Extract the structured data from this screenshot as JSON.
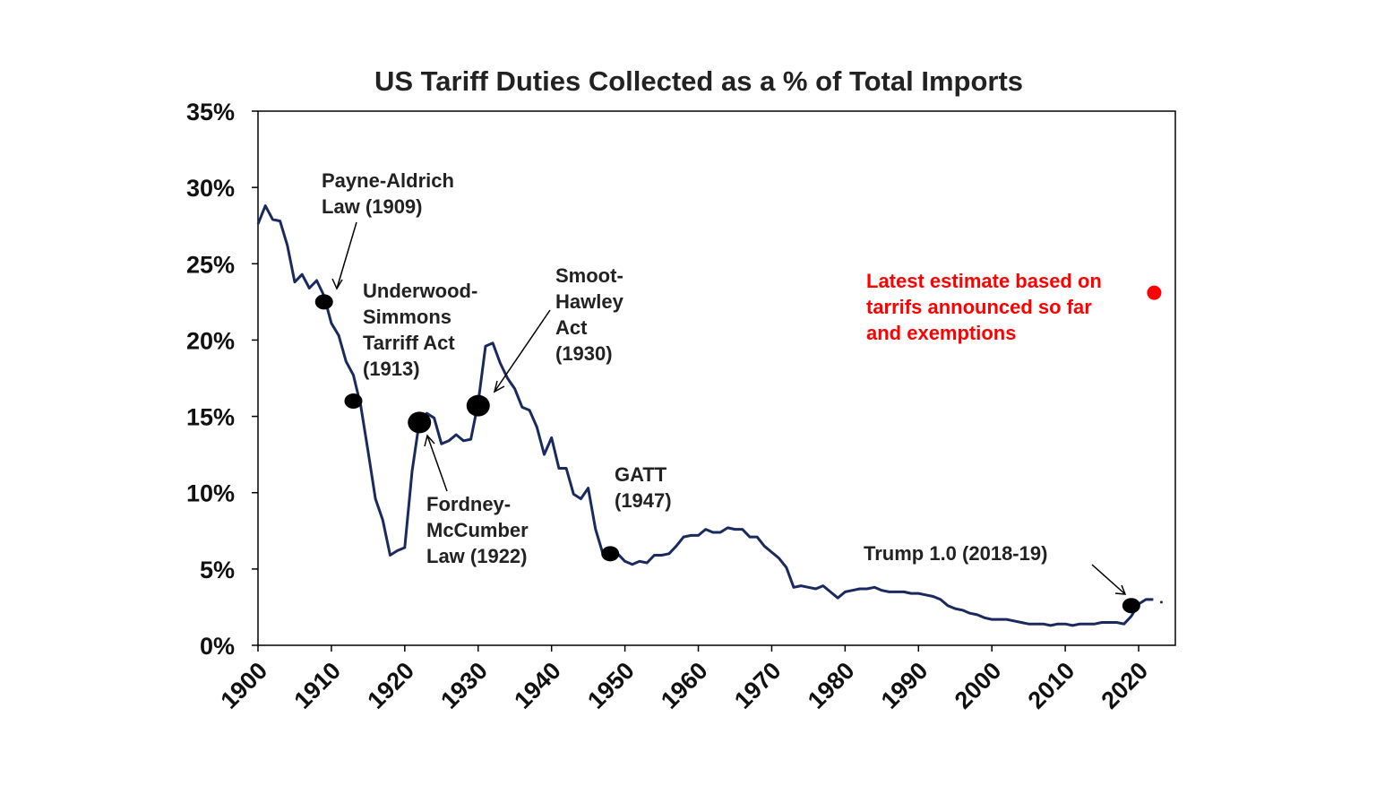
{
  "chart_data": {
    "type": "line",
    "title": "US Tariff Duties Collected as a % of Total Imports",
    "xlabel": "",
    "ylabel": "",
    "xlim": [
      1900,
      2025
    ],
    "ylim": [
      0,
      35
    ],
    "x_ticks": [
      "1900",
      "1910",
      "1920",
      "1930",
      "1940",
      "1950",
      "1960",
      "1970",
      "1980",
      "1990",
      "2000",
      "2010",
      "2020"
    ],
    "y_ticks": [
      "0%",
      "5%",
      "10%",
      "15%",
      "20%",
      "25%",
      "30%",
      "35%"
    ],
    "grid": false,
    "colors": {
      "line": "#1b2a5e",
      "marker": "#000000",
      "estimate": "#ff0000",
      "estimate_text": "#ff0000"
    },
    "series": [
      {
        "x": [
          1900,
          1901,
          1902,
          1903,
          1904,
          1905,
          1906,
          1907,
          1908,
          1909,
          1910,
          1911,
          1912,
          1913,
          1914,
          1915,
          1916,
          1917,
          1918,
          1919,
          1920,
          1921,
          1922,
          1923,
          1924,
          1925,
          1926,
          1927,
          1928,
          1929,
          1930,
          1931,
          1932,
          1933,
          1934,
          1935,
          1936,
          1937,
          1938,
          1939,
          1940,
          1941,
          1942,
          1943,
          1944,
          1945,
          1946,
          1947,
          1948,
          1949,
          1950,
          1951,
          1952,
          1953,
          1954,
          1955,
          1956,
          1957,
          1958,
          1959,
          1960,
          1961,
          1962,
          1963,
          1964,
          1965,
          1966,
          1967,
          1968,
          1969,
          1970,
          1971,
          1972,
          1973,
          1974,
          1975,
          1976,
          1977,
          1978,
          1979,
          1980,
          1981,
          1982,
          1983,
          1984,
          1985,
          1986,
          1987,
          1988,
          1989,
          1990,
          1991,
          1992,
          1993,
          1994,
          1995,
          1996,
          1997,
          1998,
          1999,
          2000,
          2001,
          2002,
          2003,
          2004,
          2005,
          2006,
          2007,
          2008,
          2009,
          2010,
          2011,
          2012,
          2013,
          2014,
          2015,
          2016,
          2017,
          2018,
          2019,
          2020,
          2021,
          2022
        ],
        "y": [
          27.6,
          28.8,
          27.9,
          27.8,
          26.2,
          23.8,
          24.3,
          23.4,
          23.9,
          22.9,
          21.1,
          20.3,
          18.6,
          17.7,
          15.7,
          12.7,
          9.6,
          8.2,
          5.9,
          6.2,
          6.4,
          11.4,
          14.7,
          15.2,
          14.9,
          13.2,
          13.4,
          13.8,
          13.4,
          13.5,
          15.9,
          19.6,
          19.8,
          18.5,
          17.5,
          16.8,
          15.6,
          15.4,
          14.3,
          12.5,
          13.6,
          11.6,
          11.6,
          9.9,
          9.6,
          10.3,
          7.6,
          6.0,
          5.7,
          6.0,
          5.5,
          5.3,
          5.5,
          5.4,
          5.9,
          5.9,
          6.0,
          6.5,
          7.1,
          7.2,
          7.2,
          7.6,
          7.4,
          7.4,
          7.7,
          7.6,
          7.6,
          7.1,
          7.1,
          6.5,
          6.1,
          5.7,
          5.1,
          3.8,
          3.9,
          3.8,
          3.7,
          3.9,
          3.5,
          3.1,
          3.5,
          3.6,
          3.7,
          3.7,
          3.8,
          3.6,
          3.5,
          3.5,
          3.5,
          3.4,
          3.4,
          3.3,
          3.2,
          3.0,
          2.6,
          2.4,
          2.3,
          2.1,
          2.0,
          1.8,
          1.7,
          1.7,
          1.7,
          1.6,
          1.5,
          1.4,
          1.4,
          1.4,
          1.3,
          1.4,
          1.4,
          1.3,
          1.4,
          1.4,
          1.4,
          1.5,
          1.5,
          1.5,
          1.4,
          1.9,
          2.7,
          3.0,
          3.0
        ]
      }
    ],
    "markers": [
      {
        "x": 1909,
        "y": 22.5
      },
      {
        "x": 1913,
        "y": 16.0
      },
      {
        "x": 1922,
        "y": 14.6
      },
      {
        "x": 1930,
        "y": 15.7
      },
      {
        "x": 1948,
        "y": 6.0
      },
      {
        "x": 2019,
        "y": 2.6
      }
    ],
    "latest_estimate": {
      "x": 2022,
      "y": 23.1
    },
    "annotations": [
      {
        "lines": [
          "Payne-Aldrich",
          "Law (1909)"
        ]
      },
      {
        "lines": [
          "Underwood-",
          "Simmons",
          "Tarriff Act",
          "(1913)"
        ]
      },
      {
        "lines": [
          "Fordney-",
          "McCumber",
          "Law (1922)"
        ]
      },
      {
        "lines": [
          "Smoot-",
          "Hawley",
          "Act",
          "(1930)"
        ]
      },
      {
        "lines": [
          "GATT",
          "(1947)"
        ]
      },
      {
        "lines": [
          "Trump 1.0 (2018-19)"
        ]
      },
      {
        "lines": [
          "Latest estimate based on",
          "tarrifs announced so far",
          "and exemptions"
        ]
      }
    ]
  }
}
